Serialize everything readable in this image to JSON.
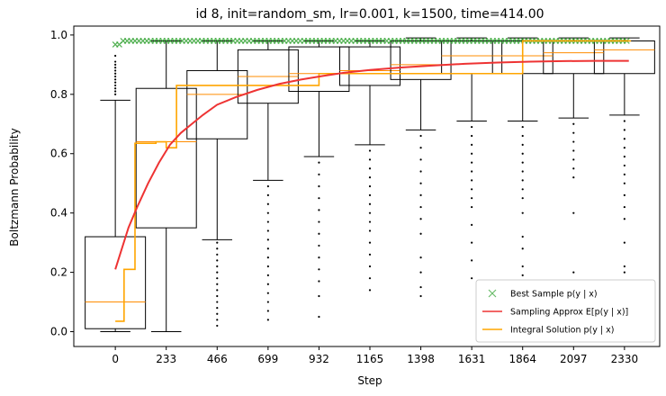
{
  "chart_data": {
    "type": "box+line",
    "title": "id 8, init=random_sm, lr=0.001, k=1500, time=414.00",
    "xlabel": "Step",
    "ylabel": "Boltzmann Probability",
    "xlim": [
      -190,
      2520
    ],
    "ylim": [
      -0.05,
      1.03
    ],
    "xticks": [
      0,
      233,
      466,
      699,
      932,
      1165,
      1398,
      1631,
      1864,
      2097,
      2330
    ],
    "yticks": [
      0.0,
      0.2,
      0.4,
      0.6,
      0.8,
      1.0
    ],
    "ytick_labels": [
      "0.0",
      "0.2",
      "0.4",
      "0.6",
      "0.8",
      "1.0"
    ],
    "colors": {
      "best_sample": "#2ca02c",
      "sampling": "#ee3333",
      "integral": "#ffa500",
      "box": "#000000",
      "median": "#ff8c00"
    },
    "legend": {
      "position": "lower right",
      "entries": [
        {
          "label": "Best Sample p(y | x)",
          "marker": "x",
          "color": "#2ca02c"
        },
        {
          "label": "Sampling Approx E[p(y | x)]",
          "marker": "line",
          "color": "#ee3333"
        },
        {
          "label": "Integral Solution p(y | x)",
          "marker": "line",
          "color": "#ffa500"
        }
      ]
    },
    "boxes": [
      {
        "step": 0,
        "q1": 0.01,
        "median": 0.1,
        "q3": 0.32,
        "whislo": 0.0,
        "whishi": 0.78,
        "fliers": [
          0.8,
          0.81,
          0.82,
          0.83,
          0.84,
          0.85,
          0.86,
          0.87,
          0.88,
          0.89,
          0.9,
          0.91,
          0.93
        ]
      },
      {
        "step": 233,
        "q1": 0.35,
        "median": 0.64,
        "q3": 0.82,
        "whislo": 0.0,
        "whishi": 0.98,
        "fliers": []
      },
      {
        "step": 466,
        "q1": 0.65,
        "median": 0.8,
        "q3": 0.88,
        "whislo": 0.31,
        "whishi": 0.98,
        "fliers": [
          0.3,
          0.28,
          0.26,
          0.24,
          0.22,
          0.2,
          0.18,
          0.16,
          0.14,
          0.12,
          0.1,
          0.08,
          0.06,
          0.04,
          0.02
        ]
      },
      {
        "step": 699,
        "q1": 0.77,
        "median": 0.86,
        "q3": 0.95,
        "whislo": 0.51,
        "whishi": 0.98,
        "fliers": [
          0.49,
          0.46,
          0.43,
          0.4,
          0.37,
          0.34,
          0.31,
          0.28,
          0.25,
          0.22,
          0.19,
          0.16,
          0.13,
          0.1,
          0.07,
          0.04
        ]
      },
      {
        "step": 932,
        "q1": 0.81,
        "median": 0.87,
        "q3": 0.96,
        "whislo": 0.59,
        "whishi": 0.98,
        "fliers": [
          0.57,
          0.53,
          0.49,
          0.45,
          0.41,
          0.37,
          0.33,
          0.29,
          0.25,
          0.21,
          0.17,
          0.12,
          0.05
        ]
      },
      {
        "step": 1165,
        "q1": 0.83,
        "median": 0.88,
        "q3": 0.96,
        "whislo": 0.63,
        "whishi": 0.98,
        "fliers": [
          0.61,
          0.58,
          0.55,
          0.52,
          0.49,
          0.46,
          0.43,
          0.4,
          0.37,
          0.34,
          0.3,
          0.26,
          0.22,
          0.18,
          0.14
        ]
      },
      {
        "step": 1398,
        "q1": 0.85,
        "median": 0.9,
        "q3": 0.98,
        "whislo": 0.68,
        "whishi": 0.99,
        "fliers": [
          0.66,
          0.62,
          0.58,
          0.54,
          0.5,
          0.46,
          0.42,
          0.38,
          0.33,
          0.25,
          0.2,
          0.15,
          0.12
        ]
      },
      {
        "step": 1631,
        "q1": 0.87,
        "median": 0.93,
        "q3": 0.98,
        "whislo": 0.71,
        "whishi": 0.99,
        "fliers": [
          0.69,
          0.66,
          0.63,
          0.6,
          0.57,
          0.54,
          0.51,
          0.48,
          0.45,
          0.42,
          0.36,
          0.3,
          0.24,
          0.18
        ]
      },
      {
        "step": 1864,
        "q1": 0.87,
        "median": 0.93,
        "q3": 0.98,
        "whislo": 0.71,
        "whishi": 0.99,
        "fliers": [
          0.69,
          0.66,
          0.63,
          0.6,
          0.57,
          0.54,
          0.51,
          0.48,
          0.45,
          0.4,
          0.32,
          0.28,
          0.22,
          0.19
        ]
      },
      {
        "step": 2097,
        "q1": 0.87,
        "median": 0.94,
        "q3": 0.98,
        "whislo": 0.72,
        "whishi": 0.99,
        "fliers": [
          0.7,
          0.67,
          0.64,
          0.61,
          0.58,
          0.55,
          0.52,
          0.4,
          0.2
        ]
      },
      {
        "step": 2330,
        "q1": 0.87,
        "median": 0.95,
        "q3": 0.98,
        "whislo": 0.73,
        "whishi": 0.99,
        "fliers": [
          0.71,
          0.68,
          0.65,
          0.62,
          0.59,
          0.56,
          0.53,
          0.5,
          0.46,
          0.42,
          0.38,
          0.3,
          0.22,
          0.2
        ]
      }
    ],
    "sampling_approx": {
      "x": [
        0,
        30,
        60,
        100,
        150,
        200,
        250,
        300,
        350,
        400,
        466,
        550,
        650,
        750,
        850,
        950,
        1050,
        1165,
        1300,
        1450,
        1600,
        1750,
        1900,
        2050,
        2200,
        2350
      ],
      "y": [
        0.21,
        0.28,
        0.35,
        0.42,
        0.5,
        0.57,
        0.63,
        0.67,
        0.7,
        0.73,
        0.765,
        0.79,
        0.815,
        0.835,
        0.85,
        0.862,
        0.873,
        0.882,
        0.89,
        0.897,
        0.903,
        0.907,
        0.91,
        0.912,
        0.913,
        0.913
      ]
    },
    "integral_solution": {
      "x": [
        0,
        40,
        40,
        90,
        90,
        186,
        186,
        233,
        233,
        280,
        280,
        466,
        466,
        699,
        699,
        932,
        932,
        1398,
        1398,
        1631,
        1631,
        1864,
        1864,
        2097,
        2097,
        2330,
        2330,
        2360
      ],
      "y": [
        0.035,
        0.035,
        0.21,
        0.21,
        0.635,
        0.635,
        0.64,
        0.64,
        0.62,
        0.62,
        0.83,
        0.83,
        0.83,
        0.83,
        0.83,
        0.83,
        0.87,
        0.87,
        0.87,
        0.87,
        0.87,
        0.87,
        0.98,
        0.98,
        0.98,
        0.98,
        0.98,
        0.98
      ]
    },
    "best_sample": {
      "x_start": 0,
      "x_end": 2350,
      "y": 0.98
    }
  }
}
